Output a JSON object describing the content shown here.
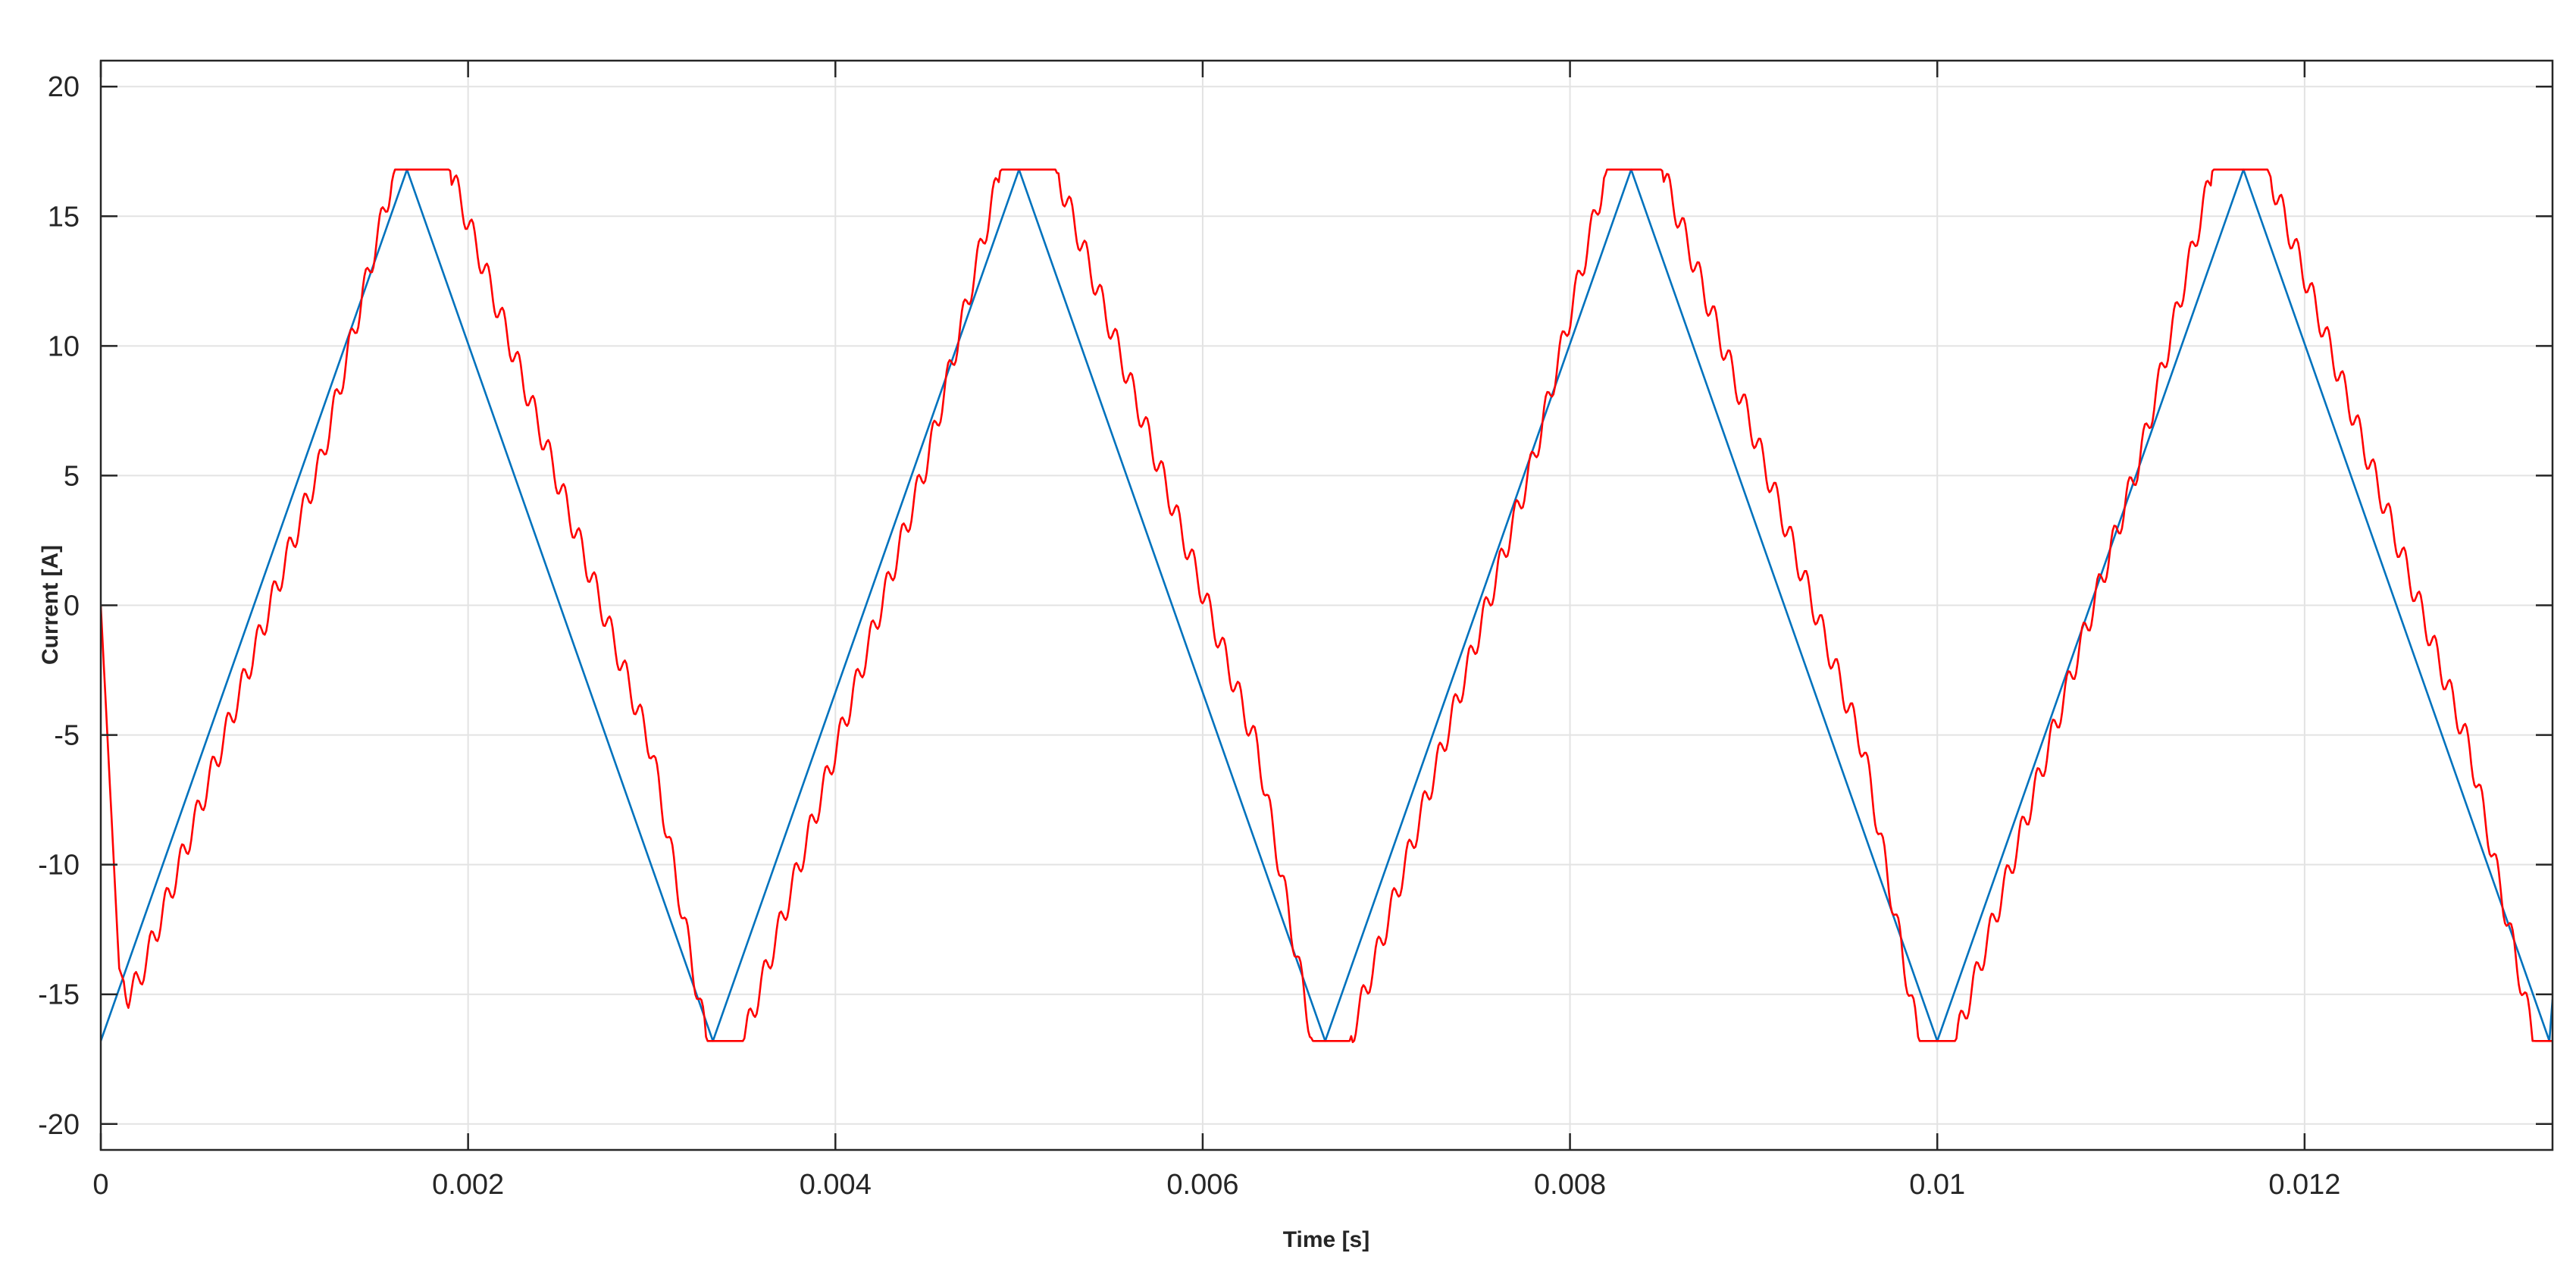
{
  "chart_data": {
    "type": "line",
    "xlabel": "Time [s]",
    "ylabel": "Current [A]",
    "xlim": [
      0,
      0.01335
    ],
    "ylim": [
      -21,
      21
    ],
    "grid": true,
    "legend": "none",
    "x_ticks": [
      0,
      0.002,
      0.004,
      0.006,
      0.008,
      0.01,
      0.012
    ],
    "x_tick_labels": [
      "0",
      "0.002",
      "0.004",
      "0.006",
      "0.008",
      "0.01",
      "0.012"
    ],
    "y_ticks": [
      -20,
      -15,
      -10,
      -5,
      0,
      5,
      10,
      15,
      20
    ],
    "y_tick_labels": [
      "-20",
      "-15",
      "-10",
      "-5",
      "0",
      "5",
      "10",
      "15",
      "20"
    ],
    "series": [
      {
        "color": "#0072BD",
        "shape": "triangle",
        "x": [
          0,
          0.001667,
          0.003333,
          0.005,
          0.006667,
          0.008333,
          0.01,
          0.011667,
          0.013333,
          0.01335
        ],
        "y": [
          -16.8,
          16.8,
          -16.8,
          16.8,
          -16.8,
          16.8,
          -16.8,
          16.8,
          -16.8,
          -15.2
        ]
      },
      {
        "color": "#FF0000",
        "shape": "rippled triangle with flat clipped peaks",
        "x": [
          0,
          0.0001,
          0.00015,
          0.0002,
          0.0004,
          0.0012,
          0.0016,
          0.0019,
          0.003,
          0.0033,
          0.0035,
          0.0045,
          0.0049,
          0.0052,
          0.0063,
          0.0066,
          0.0068,
          0.0078,
          0.0082,
          0.0085,
          0.0096,
          0.0099,
          0.0101,
          0.0111,
          0.0115,
          0.0118,
          0.0129,
          0.01325,
          0.01335
        ],
        "y": [
          0,
          -14,
          -15,
          -14.6,
          -10.6,
          5.6,
          16.8,
          16.8,
          -5.6,
          -16.8,
          -16.8,
          5.6,
          16.8,
          16.8,
          -5.6,
          -16.8,
          -16.8,
          5.6,
          16.8,
          16.8,
          -5.6,
          -16.8,
          -16.8,
          5.6,
          16.8,
          16.8,
          -5.6,
          -16.8,
          -16.8
        ]
      }
    ]
  }
}
